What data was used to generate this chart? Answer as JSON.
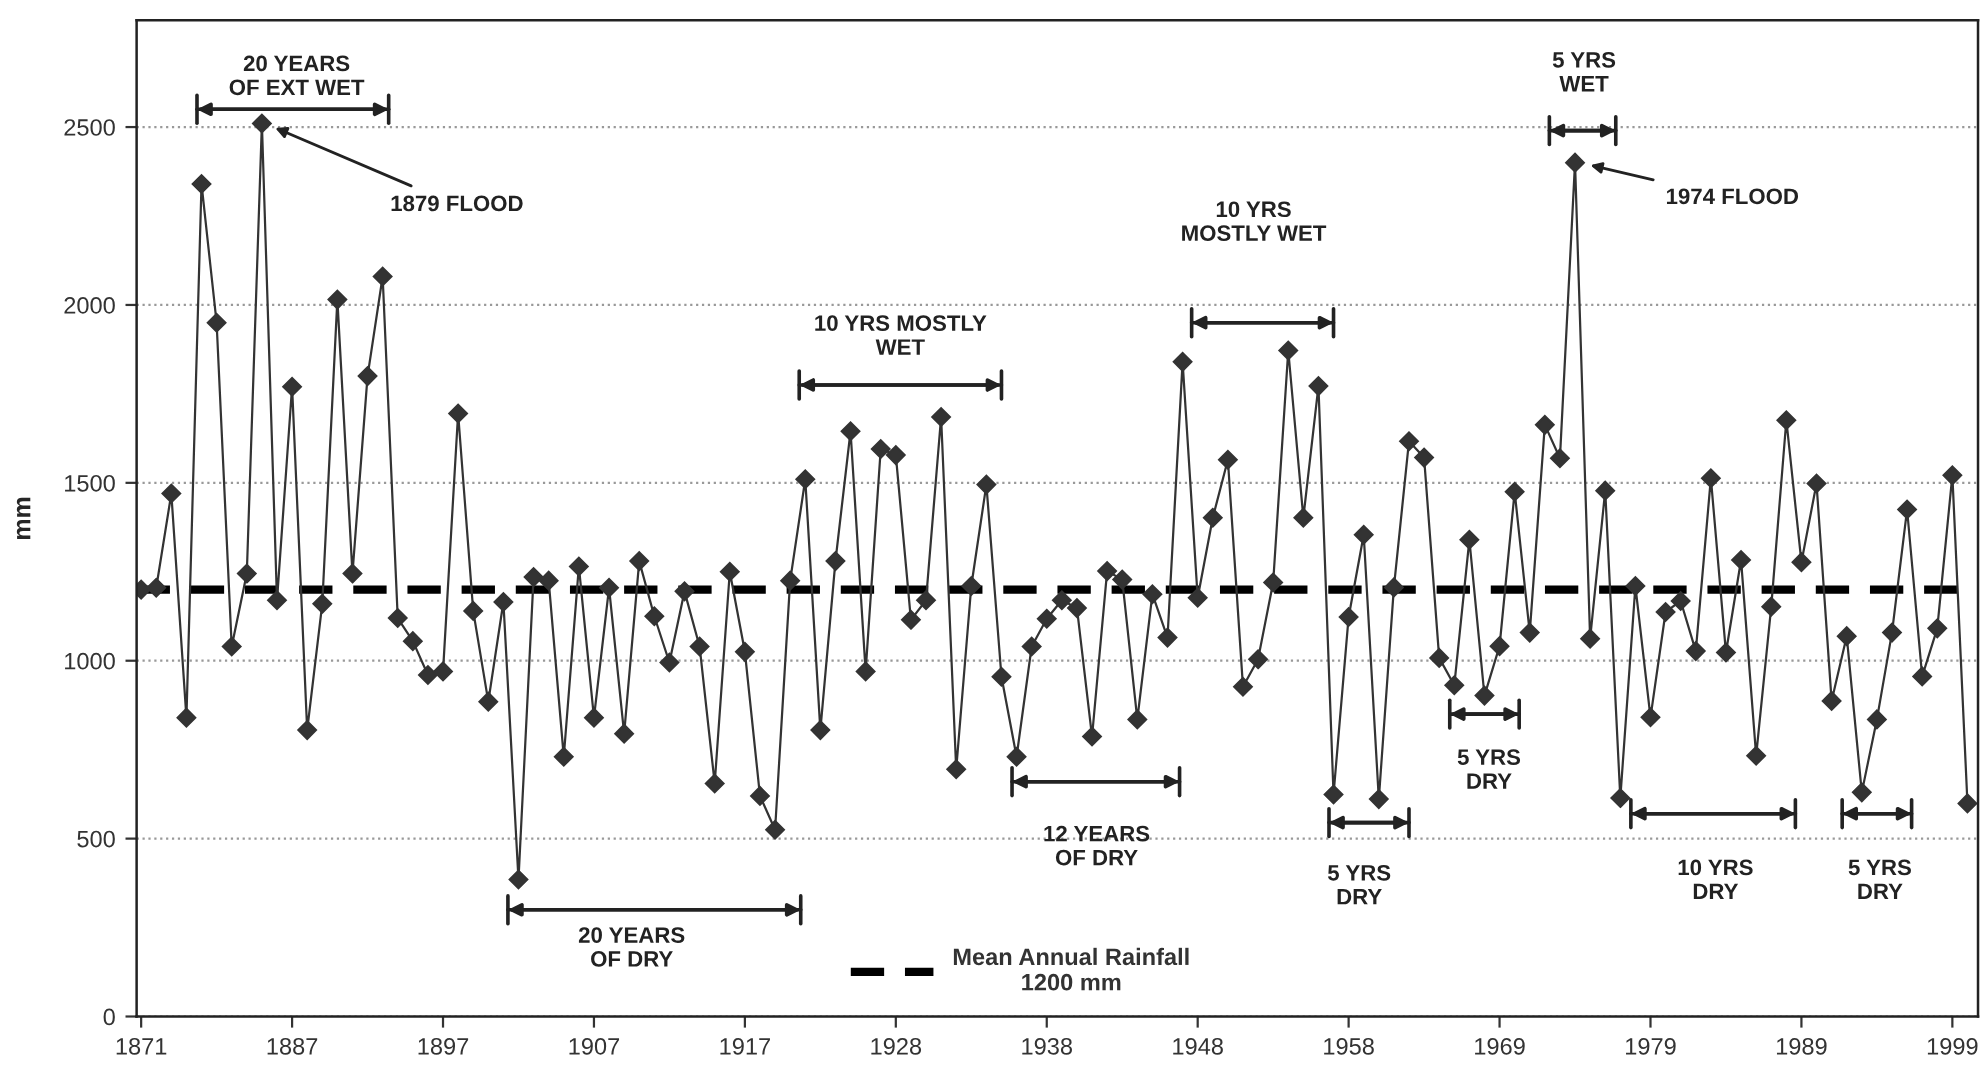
{
  "chart_data": {
    "type": "line",
    "ylabel": "mm",
    "categories": [
      "1871",
      null,
      null,
      null,
      null,
      null,
      null,
      null,
      null,
      null,
      "1887",
      null,
      null,
      null,
      null,
      null,
      null,
      null,
      null,
      null,
      "1897",
      null,
      null,
      null,
      null,
      null,
      null,
      null,
      null,
      null,
      "1907",
      null,
      null,
      null,
      null,
      null,
      null,
      null,
      null,
      null,
      "1917",
      null,
      null,
      null,
      null,
      null,
      null,
      null,
      null,
      null,
      "1928",
      null,
      null,
      null,
      null,
      null,
      null,
      null,
      null,
      null,
      "1938",
      null,
      null,
      null,
      null,
      null,
      null,
      null,
      null,
      null,
      "1948",
      null,
      null,
      null,
      null,
      null,
      null,
      null,
      null,
      null,
      "1958",
      null,
      null,
      null,
      null,
      null,
      null,
      null,
      null,
      null,
      "1969",
      null,
      null,
      null,
      null,
      null,
      null,
      null,
      null,
      null,
      "1979",
      null,
      null,
      null,
      null,
      null,
      null,
      null,
      null,
      null,
      "1989",
      null,
      null,
      null,
      null,
      null,
      null,
      null,
      null,
      null,
      "1999",
      null
    ],
    "series": [
      {
        "color": "#333333",
        "marker": "diamond",
        "line_style": "solid",
        "values": [
          1200,
          1205,
          1470,
          840,
          2340,
          1950,
          1040,
          1245,
          2510,
          1170,
          1770,
          805,
          1160,
          2015,
          1245,
          1800,
          2080,
          1120,
          1055,
          960,
          970,
          1695,
          1140,
          885,
          1165,
          385,
          1235,
          1225,
          730,
          1265,
          840,
          1205,
          795,
          1280,
          1125,
          995,
          1195,
          1040,
          655,
          1250,
          1025,
          620,
          525,
          1225,
          1510,
          805,
          1280,
          1645,
          970,
          1595,
          1578,
          1115,
          1170,
          1685,
          695,
          1210,
          1495,
          955,
          730,
          1040,
          1118,
          1170,
          1148,
          787,
          1252,
          1228,
          835,
          1187,
          1065,
          1840,
          1177,
          1402,
          1565,
          927,
          1004,
          1220,
          1872,
          1402,
          1772,
          624,
          1123,
          1354,
          611,
          1206,
          1617,
          1571,
          1008,
          931,
          1340,
          902,
          1041,
          1475,
          1079,
          1663,
          1569,
          2400,
          1062,
          1478,
          614,
          1210,
          841,
          1137,
          1168,
          1027,
          1513,
          1023,
          1283,
          733,
          1152,
          1676,
          1277,
          1498,
          887,
          1069,
          630,
          835,
          1079,
          1425,
          956,
          1091,
          1521,
          599
        ]
      }
    ],
    "ylim": [
      0,
      2800
    ],
    "yticks": [
      0,
      500,
      1000,
      1500,
      2000,
      2500
    ],
    "grid": "y",
    "ref_lines": [
      {
        "axis": "y",
        "value": 1200,
        "label": "Mean Annual Rainfall\n1200 mm",
        "color": "#000000",
        "line_style": "dashed"
      }
    ],
    "legend": "bottom",
    "annotations": [
      "20 YEARS\nOF EXT WET",
      "1879 FLOOD",
      "20 YEARS\nOF DRY",
      "10 YRS MOSTLY\nWET",
      "12 YEARS\nOF DRY",
      "10 YRS\nMOSTLY WET",
      "5 YRS\nDRY",
      "5 YRS\nDRY",
      "5 YRS\nWET",
      "1974 FLOOD",
      "10 YRS\nDRY",
      "5 YRS\nDRY"
    ]
  }
}
